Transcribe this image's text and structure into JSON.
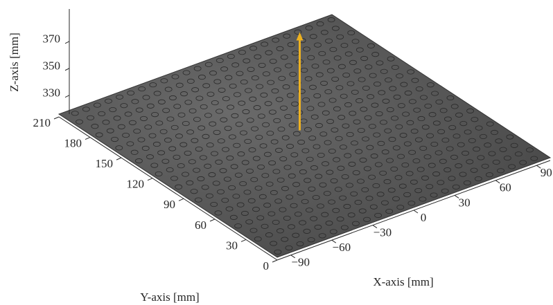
{
  "chart_data": {
    "type": "surface3d",
    "xlabel": "X-axis [mm]",
    "ylabel": "Y-axis [mm]",
    "zlabel": "Z-axis [mm]",
    "xlim": [
      -100,
      100
    ],
    "ylim": [
      0,
      210
    ],
    "zlim": [
      316,
      394
    ],
    "xticks": [
      {
        "value": -90,
        "label": "−90"
      },
      {
        "value": -60,
        "label": "−60"
      },
      {
        "value": -30,
        "label": "−30"
      },
      0,
      30,
      60,
      90
    ],
    "yticks": [
      0,
      30,
      60,
      90,
      120,
      150,
      180,
      210
    ],
    "zticks": [
      330,
      350,
      370
    ],
    "plane_color": "#4a4a4a",
    "arrow_color": "#edb120"
  }
}
